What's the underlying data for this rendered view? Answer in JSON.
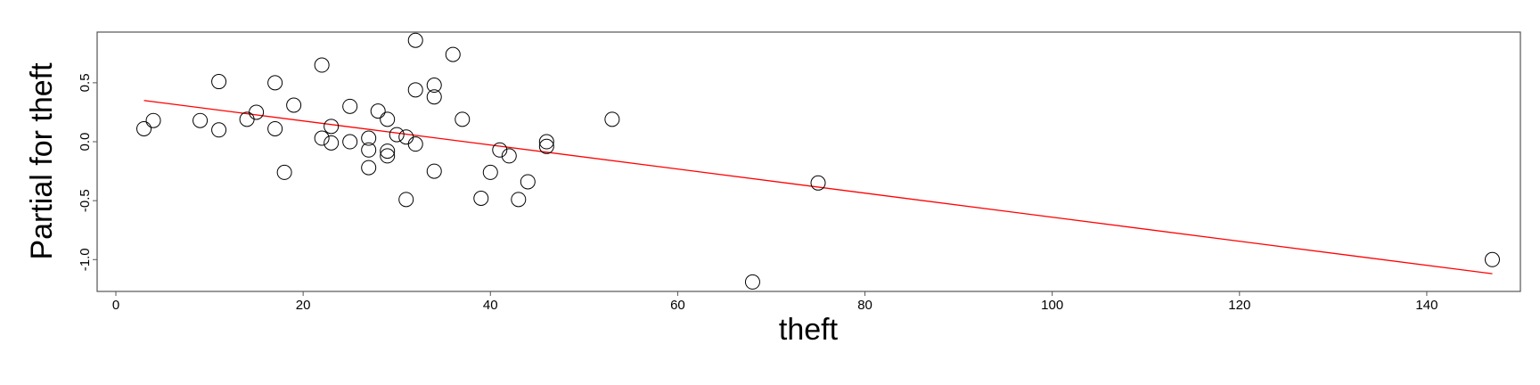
{
  "chart_data": {
    "type": "scatter",
    "title": "",
    "xlabel": "theft",
    "ylabel": "Partial for theft",
    "xlim": [
      -2,
      150
    ],
    "ylim": [
      -1.27,
      0.93
    ],
    "x_ticks": [
      0,
      20,
      40,
      60,
      80,
      100,
      120,
      140
    ],
    "x_tick_labels": [
      "0",
      "20",
      "40",
      "60",
      "80",
      "100",
      "120",
      "140"
    ],
    "y_ticks": [
      -1.0,
      -0.5,
      0.0,
      0.5
    ],
    "y_tick_labels": [
      "-1.0",
      "-0.5",
      "0.0",
      "0.5"
    ],
    "grid": false,
    "points": [
      {
        "x": 3,
        "y": 0.11
      },
      {
        "x": 4,
        "y": 0.18
      },
      {
        "x": 9,
        "y": 0.18
      },
      {
        "x": 11,
        "y": 0.1
      },
      {
        "x": 11,
        "y": 0.51
      },
      {
        "x": 14,
        "y": 0.19
      },
      {
        "x": 15,
        "y": 0.25
      },
      {
        "x": 17,
        "y": 0.5
      },
      {
        "x": 17,
        "y": 0.11
      },
      {
        "x": 18,
        "y": -0.26
      },
      {
        "x": 19,
        "y": 0.31
      },
      {
        "x": 22,
        "y": 0.65
      },
      {
        "x": 22,
        "y": 0.03
      },
      {
        "x": 23,
        "y": 0.13
      },
      {
        "x": 23,
        "y": -0.01
      },
      {
        "x": 25,
        "y": 0.3
      },
      {
        "x": 25,
        "y": 0.0
      },
      {
        "x": 27,
        "y": 0.03
      },
      {
        "x": 27,
        "y": -0.07
      },
      {
        "x": 27,
        "y": -0.22
      },
      {
        "x": 28,
        "y": 0.26
      },
      {
        "x": 29,
        "y": 0.19
      },
      {
        "x": 29,
        "y": -0.08
      },
      {
        "x": 29,
        "y": -0.12
      },
      {
        "x": 30,
        "y": 0.06
      },
      {
        "x": 31,
        "y": 0.04
      },
      {
        "x": 31,
        "y": -0.49
      },
      {
        "x": 32,
        "y": 0.86
      },
      {
        "x": 32,
        "y": 0.44
      },
      {
        "x": 32,
        "y": -0.02
      },
      {
        "x": 34,
        "y": 0.48
      },
      {
        "x": 34,
        "y": 0.38
      },
      {
        "x": 34,
        "y": -0.25
      },
      {
        "x": 36,
        "y": 0.74
      },
      {
        "x": 37,
        "y": 0.19
      },
      {
        "x": 39,
        "y": -0.48
      },
      {
        "x": 40,
        "y": -0.26
      },
      {
        "x": 41,
        "y": -0.07
      },
      {
        "x": 42,
        "y": -0.12
      },
      {
        "x": 43,
        "y": -0.49
      },
      {
        "x": 44,
        "y": -0.34
      },
      {
        "x": 46,
        "y": 0.0
      },
      {
        "x": 46,
        "y": -0.04
      },
      {
        "x": 53,
        "y": 0.19
      },
      {
        "x": 68,
        "y": -1.19
      },
      {
        "x": 75,
        "y": -0.35
      },
      {
        "x": 147,
        "y": -1.0
      }
    ],
    "fit_line": {
      "color": "#ff0000",
      "x": [
        3,
        147
      ],
      "y": [
        0.35,
        -1.12
      ]
    },
    "point_style": {
      "shape": "open-circle",
      "color": "#000000"
    }
  }
}
